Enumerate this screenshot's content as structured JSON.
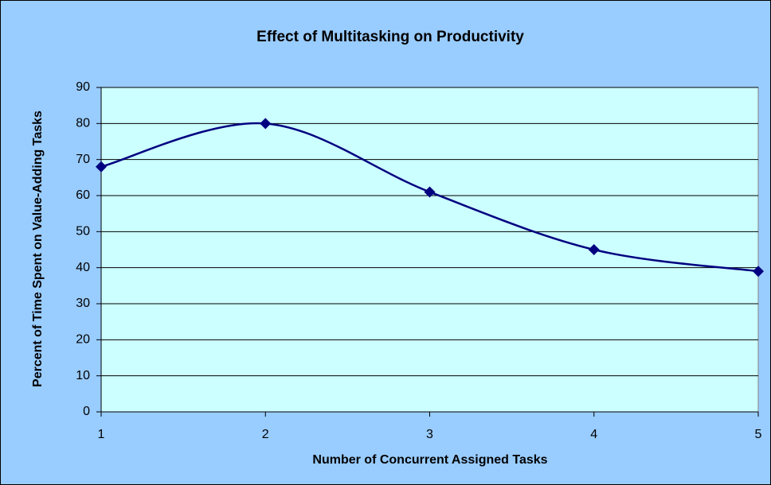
{
  "chart_data": {
    "type": "line",
    "title": "Effect of Multitasking on Productivity",
    "xlabel": "Number of Concurrent Assigned Tasks",
    "ylabel": "Percent of Time Spent on Value-Adding Tasks",
    "x": [
      1,
      2,
      3,
      4,
      5
    ],
    "series": [
      {
        "name": "Percent of Time Spent on Value-Adding Tasks",
        "color": "#000080",
        "values": [
          68,
          80,
          61,
          45,
          39
        ]
      }
    ],
    "xlim": [
      1,
      5
    ],
    "xticks": [
      1,
      2,
      3,
      4,
      5
    ],
    "ylim": [
      0,
      90
    ],
    "yticks": [
      0,
      10,
      20,
      30,
      40,
      50,
      60,
      70,
      80,
      90
    ],
    "grid": true,
    "smooth": true,
    "background": "#99ccff",
    "plot_background": "#ccffff"
  }
}
